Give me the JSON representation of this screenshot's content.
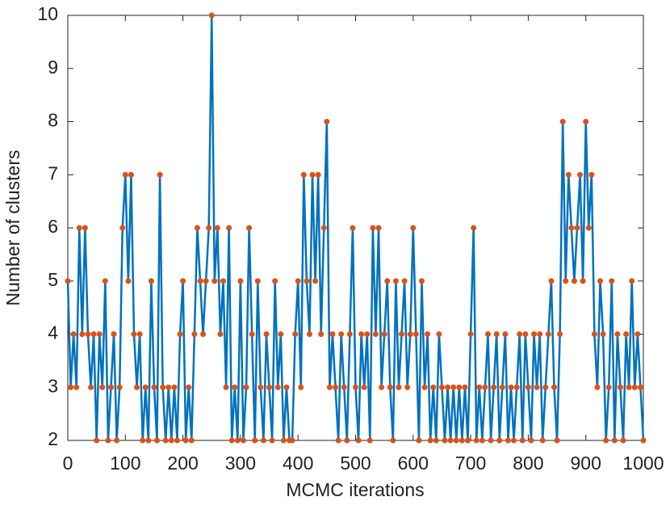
{
  "chart_data": {
    "type": "line",
    "xlabel": "MCMC iterations",
    "ylabel": "Number of clusters",
    "x": [
      0,
      5,
      10,
      15,
      20,
      25,
      30,
      35,
      40,
      45,
      50,
      55,
      60,
      65,
      70,
      75,
      80,
      85,
      90,
      95,
      100,
      105,
      110,
      115,
      120,
      125,
      130,
      135,
      140,
      145,
      150,
      155,
      160,
      165,
      170,
      175,
      180,
      185,
      190,
      195,
      200,
      205,
      210,
      215,
      220,
      225,
      230,
      235,
      240,
      245,
      250,
      255,
      260,
      265,
      270,
      275,
      280,
      285,
      290,
      295,
      300,
      305,
      310,
      315,
      320,
      325,
      330,
      335,
      340,
      345,
      350,
      355,
      360,
      365,
      370,
      375,
      380,
      385,
      390,
      395,
      400,
      405,
      410,
      415,
      420,
      425,
      430,
      435,
      440,
      445,
      450,
      455,
      460,
      465,
      470,
      475,
      480,
      485,
      490,
      495,
      500,
      505,
      510,
      515,
      520,
      525,
      530,
      535,
      540,
      545,
      550,
      555,
      560,
      565,
      570,
      575,
      580,
      585,
      590,
      595,
      600,
      605,
      610,
      615,
      620,
      625,
      630,
      635,
      640,
      645,
      650,
      655,
      660,
      665,
      670,
      675,
      680,
      685,
      690,
      695,
      700,
      705,
      710,
      715,
      720,
      725,
      730,
      735,
      740,
      745,
      750,
      755,
      760,
      765,
      770,
      775,
      780,
      785,
      790,
      795,
      800,
      805,
      810,
      815,
      820,
      825,
      830,
      835,
      840,
      845,
      850,
      855,
      860,
      865,
      870,
      875,
      880,
      885,
      890,
      895,
      900,
      905,
      910,
      915,
      920,
      925,
      930,
      935,
      940,
      945,
      950,
      955,
      960,
      965,
      970,
      975,
      980,
      985,
      990,
      995,
      1000
    ],
    "series": [
      {
        "name": "clusters",
        "color": "#0072BD",
        "marker_color": "#D95319",
        "values": [
          5,
          3,
          4,
          3,
          6,
          4,
          6,
          4,
          3,
          4,
          2,
          4,
          3,
          5,
          2,
          3,
          4,
          2,
          3,
          6,
          7,
          5,
          7,
          4,
          3,
          4,
          2,
          3,
          2,
          5,
          3,
          2,
          7,
          3,
          2,
          3,
          2,
          3,
          2,
          4,
          5,
          2,
          3,
          2,
          4,
          6,
          5,
          4,
          5,
          6,
          10,
          5,
          6,
          4,
          5,
          3,
          6,
          2,
          3,
          2,
          5,
          2,
          3,
          6,
          4,
          2,
          5,
          3,
          2,
          4,
          3,
          2,
          5,
          3,
          4,
          2,
          3,
          2,
          2,
          4,
          5,
          3,
          7,
          5,
          4,
          7,
          5,
          7,
          4,
          6,
          8,
          3,
          4,
          3,
          2,
          4,
          3,
          2,
          4,
          6,
          3,
          2,
          4,
          3,
          4,
          2,
          6,
          4,
          6,
          3,
          4,
          5,
          3,
          2,
          5,
          3,
          4,
          5,
          3,
          4,
          6,
          4,
          2,
          5,
          3,
          4,
          2,
          3,
          2,
          4,
          3,
          2,
          3,
          2,
          3,
          2,
          3,
          2,
          3,
          2,
          4,
          6,
          2,
          3,
          2,
          3,
          4,
          2,
          3,
          4,
          2,
          3,
          4,
          2,
          3,
          2,
          3,
          4,
          2,
          4,
          3,
          2,
          4,
          3,
          4,
          2,
          3,
          4,
          5,
          3,
          2,
          4,
          8,
          5,
          7,
          6,
          5,
          6,
          7,
          5,
          8,
          6,
          7,
          4,
          3,
          5,
          4,
          2,
          3,
          5,
          2,
          4,
          3,
          2,
          4,
          3,
          5,
          3,
          4,
          3,
          2
        ]
      }
    ],
    "xlim": [
      0,
      1000
    ],
    "xticks": [
      0,
      100,
      200,
      300,
      400,
      500,
      600,
      700,
      800,
      900,
      1000
    ],
    "ylim": [
      2,
      10
    ],
    "yticks": [
      2,
      3,
      4,
      5,
      6,
      7,
      8,
      9,
      10
    ]
  }
}
